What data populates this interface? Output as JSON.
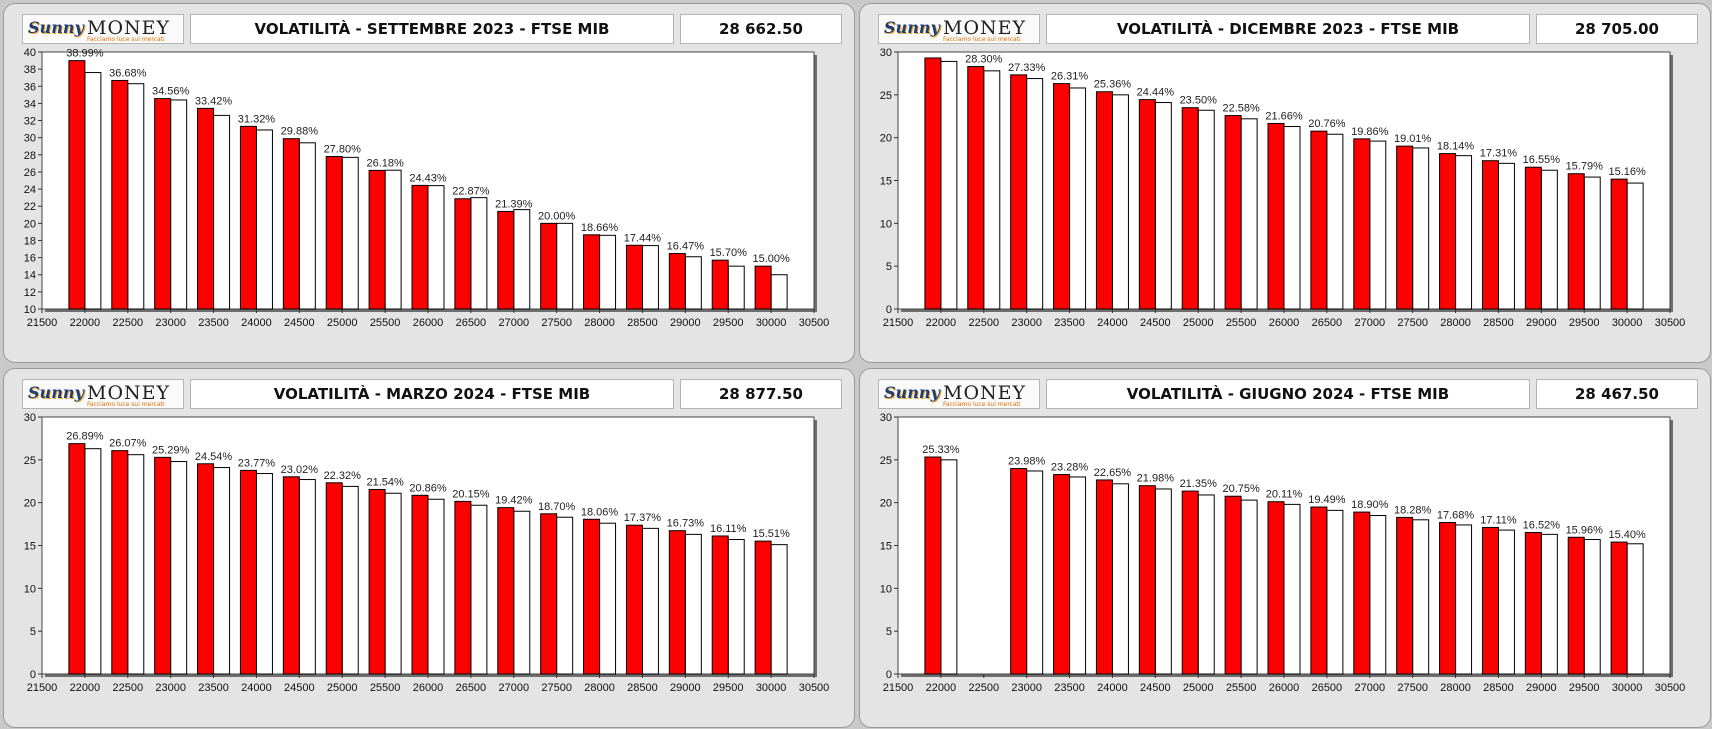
{
  "brand": {
    "sunny": "Sunny",
    "money": "MONEY",
    "tagline": "Facciamo luce sui mercati"
  },
  "colors": {
    "red_bar": "#ff0000",
    "white_bar": "#ffffff",
    "panel_bg": "#e4e4e4"
  },
  "panels": [
    {
      "title": "VOLATILITÀ - SETTEMBRE 2023 - FTSE MIB",
      "price": "28 662.50"
    },
    {
      "title": "VOLATILITÀ - DICEMBRE 2023 - FTSE MIB",
      "price": "28 705.00"
    },
    {
      "title": "VOLATILITÀ - MARZO 2024 - FTSE MIB",
      "price": "28 877.50"
    },
    {
      "title": "VOLATILITÀ - GIUGNO 2024 - FTSE MIB",
      "price": "28 467.50"
    }
  ],
  "chart_data": [
    {
      "type": "bar",
      "xlim": [
        21500,
        30500
      ],
      "xticks": [
        21500,
        22000,
        22500,
        23000,
        23500,
        24000,
        24500,
        25000,
        25500,
        26000,
        26500,
        27000,
        27500,
        28000,
        28500,
        29000,
        29500,
        30000,
        30500
      ],
      "ylim": [
        10,
        40
      ],
      "yticks": [
        10,
        12,
        14,
        16,
        18,
        20,
        22,
        24,
        26,
        28,
        30,
        32,
        34,
        36,
        38,
        40
      ],
      "categories": [
        22000,
        22500,
        23000,
        23500,
        24000,
        24500,
        25000,
        25500,
        26000,
        26500,
        27000,
        27500,
        28000,
        28500,
        29000,
        29500,
        30000
      ],
      "series": [
        {
          "values": [
            38.99,
            36.68,
            34.56,
            33.42,
            31.32,
            29.88,
            27.8,
            26.18,
            24.43,
            22.87,
            21.39,
            20.0,
            18.66,
            17.44,
            16.47,
            15.7,
            15.0
          ]
        },
        {
          "values": [
            37.6,
            36.3,
            34.4,
            32.6,
            30.9,
            29.4,
            27.7,
            26.2,
            24.4,
            23.0,
            21.6,
            20.0,
            18.6,
            17.4,
            16.1,
            15.0,
            14.0
          ]
        }
      ],
      "labels": [
        "38.99%",
        "36.68%",
        "34.56%",
        "33.42%",
        "31.32%",
        "29.88%",
        "27.80%",
        "26.18%",
        "24.43%",
        "22.87%",
        "21.39%",
        "20.00%",
        "18.66%",
        "17.44%",
        "16.47%",
        "15.70%",
        "15.00%"
      ]
    },
    {
      "type": "bar",
      "xlim": [
        21500,
        30500
      ],
      "xticks": [
        21500,
        22000,
        22500,
        23000,
        23500,
        24000,
        24500,
        25000,
        25500,
        26000,
        26500,
        27000,
        27500,
        28000,
        28500,
        29000,
        29500,
        30000,
        30500
      ],
      "ylim": [
        0,
        30
      ],
      "yticks": [
        0,
        5,
        10,
        15,
        20,
        25,
        30
      ],
      "categories": [
        22000,
        22500,
        23000,
        23500,
        24000,
        24500,
        25000,
        25500,
        26000,
        26500,
        27000,
        27500,
        28000,
        28500,
        29000,
        29500,
        30000
      ],
      "series": [
        {
          "values": [
            29.3,
            28.3,
            27.33,
            26.31,
            25.36,
            24.44,
            23.5,
            22.58,
            21.66,
            20.76,
            19.86,
            19.01,
            18.14,
            17.31,
            16.55,
            15.79,
            15.16
          ]
        },
        {
          "values": [
            28.9,
            27.8,
            26.9,
            25.8,
            25.0,
            24.1,
            23.2,
            22.2,
            21.3,
            20.4,
            19.6,
            18.8,
            17.9,
            17.0,
            16.2,
            15.4,
            14.7
          ]
        }
      ],
      "labels": [
        "",
        "28.30%",
        "27.33%",
        "26.31%",
        "25.36%",
        "24.44%",
        "23.50%",
        "22.58%",
        "21.66%",
        "20.76%",
        "19.86%",
        "19.01%",
        "18.14%",
        "17.31%",
        "16.55%",
        "15.79%",
        "15.16%"
      ]
    },
    {
      "type": "bar",
      "xlim": [
        21500,
        30500
      ],
      "xticks": [
        21500,
        22000,
        22500,
        23000,
        23500,
        24000,
        24500,
        25000,
        25500,
        26000,
        26500,
        27000,
        27500,
        28000,
        28500,
        29000,
        29500,
        30000,
        30500
      ],
      "ylim": [
        0,
        30
      ],
      "yticks": [
        0,
        5,
        10,
        15,
        20,
        25,
        30
      ],
      "categories": [
        22000,
        22500,
        23000,
        23500,
        24000,
        24500,
        25000,
        25500,
        26000,
        26500,
        27000,
        27500,
        28000,
        28500,
        29000,
        29500,
        30000
      ],
      "series": [
        {
          "values": [
            26.89,
            26.07,
            25.29,
            24.54,
            23.77,
            23.02,
            22.32,
            21.54,
            20.86,
            20.15,
            19.42,
            18.7,
            18.06,
            17.37,
            16.73,
            16.11,
            15.51
          ]
        },
        {
          "values": [
            26.3,
            25.6,
            24.8,
            24.1,
            23.4,
            22.7,
            21.9,
            21.1,
            20.4,
            19.7,
            19.0,
            18.3,
            17.6,
            17.0,
            16.3,
            15.7,
            15.1
          ]
        }
      ],
      "labels": [
        "26.89%",
        "26.07%",
        "25.29%",
        "24.54%",
        "23.77%",
        "23.02%",
        "22.32%",
        "21.54%",
        "20.86%",
        "20.15%",
        "19.42%",
        "18.70%",
        "18.06%",
        "17.37%",
        "16.73%",
        "16.11%",
        "15.51%"
      ]
    },
    {
      "type": "bar",
      "xlim": [
        21500,
        30500
      ],
      "xticks": [
        21500,
        22000,
        22500,
        23000,
        23500,
        24000,
        24500,
        25000,
        25500,
        26000,
        26500,
        27000,
        27500,
        28000,
        28500,
        29000,
        29500,
        30000,
        30500
      ],
      "ylim": [
        0,
        30
      ],
      "yticks": [
        0,
        5,
        10,
        15,
        20,
        25,
        30
      ],
      "categories": [
        22000,
        22500,
        23000,
        23500,
        24000,
        24500,
        25000,
        25500,
        26000,
        26500,
        27000,
        27500,
        28000,
        28500,
        29000,
        29500,
        30000
      ],
      "series": [
        {
          "values": [
            25.33,
            null,
            23.98,
            23.28,
            22.65,
            21.98,
            21.35,
            20.75,
            20.11,
            19.49,
            18.9,
            18.28,
            17.68,
            17.11,
            16.52,
            15.96,
            15.4
          ]
        },
        {
          "values": [
            25.0,
            null,
            23.7,
            23.0,
            22.2,
            21.6,
            20.9,
            20.3,
            19.8,
            19.1,
            18.5,
            18.0,
            17.4,
            16.8,
            16.3,
            15.7,
            15.2
          ]
        }
      ],
      "labels": [
        "25.33%",
        "",
        "23.98%",
        "23.28%",
        "22.65%",
        "21.98%",
        "21.35%",
        "20.75%",
        "20.11%",
        "19.49%",
        "18.90%",
        "18.28%",
        "17.68%",
        "17.11%",
        "16.52%",
        "15.96%",
        "15.40%"
      ]
    }
  ]
}
